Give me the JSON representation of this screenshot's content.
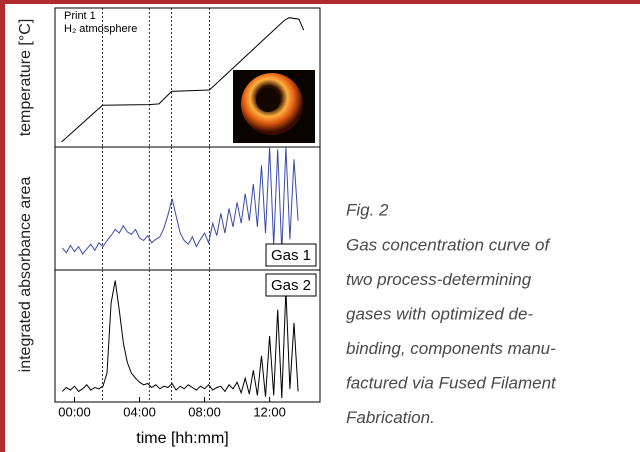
{
  "chart_data": [
    {
      "type": "line",
      "ylabel": "temperature [°C]",
      "annotations": [
        "Print 1",
        "H₂ atmosphere"
      ],
      "x": [
        -0.8,
        1.72,
        4.6,
        5.2,
        5.97,
        8.3,
        12.9,
        13.2,
        13.8,
        14.1
      ],
      "series": [
        {
          "color": "#000000",
          "values": [
            3.6,
            30,
            30.5,
            31,
            40,
            41,
            91,
            93,
            92,
            84
          ]
        }
      ],
      "xlim": [
        -1.2,
        15.1
      ],
      "ylim": [
        0,
        100
      ],
      "phase_lines": [
        1.72,
        4.6,
        5.97,
        8.3
      ]
    },
    {
      "type": "line",
      "ylabel": "integrated absorbance area",
      "x": [
        -0.75,
        -0.5,
        -0.25,
        0,
        0.25,
        0.5,
        0.75,
        1,
        1.25,
        1.5,
        1.75,
        2,
        2.25,
        2.5,
        2.75,
        3,
        3.25,
        3.5,
        3.75,
        4,
        4.25,
        4.5,
        4.75,
        5,
        5.25,
        5.5,
        5.75,
        6,
        6.25,
        6.5,
        6.75,
        7,
        7.25,
        7.5,
        7.75,
        8,
        8.25,
        8.5,
        8.75,
        9,
        9.25,
        9.5,
        9.75,
        10,
        10.25,
        10.5,
        10.75,
        11,
        11.25,
        11.5,
        11.75,
        12,
        12.25,
        12.5,
        12.75,
        13,
        13.25,
        13.5,
        13.75
      ],
      "series": [
        {
          "name": "Gas 1",
          "color": "#3b4aa8",
          "values": [
            18,
            14,
            20,
            15,
            19,
            13,
            17,
            21,
            16,
            22,
            19,
            24,
            28,
            33,
            30,
            36,
            31,
            29,
            33,
            26,
            24,
            28,
            22,
            25,
            27,
            34,
            45,
            58,
            44,
            30,
            24,
            21,
            27,
            19,
            25,
            30,
            22,
            38,
            28,
            46,
            30,
            50,
            35,
            55,
            38,
            62,
            40,
            70,
            35,
            85,
            30,
            100,
            20,
            98,
            15,
            100,
            25,
            90,
            40
          ]
        }
      ],
      "xlim": [
        -1.2,
        15.1
      ],
      "ylim": [
        0,
        100
      ],
      "phase_lines": [
        1.72,
        4.6,
        5.97,
        8.3
      ]
    },
    {
      "type": "line",
      "xlabel": "time [hh:mm]",
      "x": [
        -0.75,
        -0.5,
        -0.25,
        0,
        0.25,
        0.5,
        0.75,
        1,
        1.25,
        1.5,
        1.75,
        2,
        2.25,
        2.5,
        2.75,
        3,
        3.25,
        3.5,
        3.75,
        4,
        4.25,
        4.5,
        4.75,
        5,
        5.25,
        5.5,
        5.75,
        6,
        6.25,
        6.5,
        6.75,
        7,
        7.25,
        7.5,
        7.75,
        8,
        8.25,
        8.5,
        8.75,
        9,
        9.25,
        9.5,
        9.75,
        10,
        10.25,
        10.5,
        10.75,
        11,
        11.25,
        11.5,
        11.75,
        12,
        12.25,
        12.5,
        12.75,
        13,
        13.25,
        13.5,
        13.75
      ],
      "series": [
        {
          "name": "Gas 2",
          "color": "#000000",
          "values": [
            8,
            11,
            9,
            12,
            8,
            10,
            13,
            9,
            11,
            10,
            12,
            22,
            75,
            92,
            70,
            45,
            30,
            22,
            18,
            15,
            13,
            14,
            11,
            13,
            10,
            12,
            11,
            14,
            9,
            12,
            10,
            13,
            11,
            9,
            12,
            10,
            13,
            9,
            11,
            12,
            8,
            13,
            10,
            15,
            7,
            18,
            6,
            24,
            5,
            35,
            4,
            50,
            5,
            70,
            3,
            85,
            10,
            60,
            8
          ]
        }
      ],
      "xlim": [
        -1.2,
        15.1
      ],
      "ylim": [
        0,
        100
      ],
      "xticks": [
        {
          "value": 0,
          "label": "00:00"
        },
        {
          "value": 4,
          "label": "04:00"
        },
        {
          "value": 8,
          "label": "08:00"
        },
        {
          "value": 12,
          "label": "12:00"
        }
      ],
      "phase_lines": [
        1.72,
        4.6,
        5.97,
        8.3
      ]
    }
  ],
  "figure": {
    "label": "Fig. 2",
    "caption_lines": [
      "Gas concentration curve of",
      "two process-determining",
      "gases with optimized de-",
      "binding, components manu-",
      "factured via Fused Filament",
      "Fabrication."
    ]
  }
}
